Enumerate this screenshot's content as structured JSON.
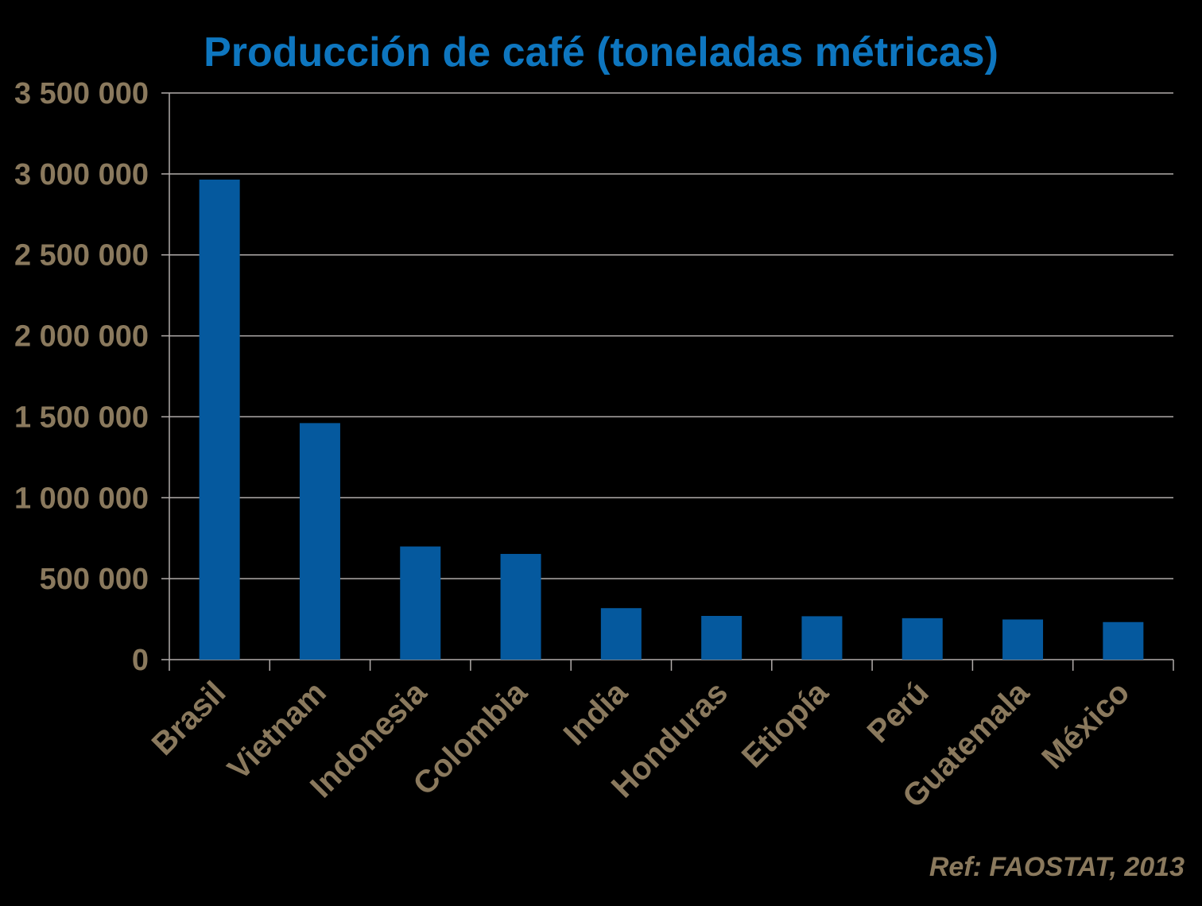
{
  "title": "Producción de café (toneladas métricas)",
  "source_reference": "Ref: FAOSTAT, 2013",
  "colors": {
    "background": "#000000",
    "title": "#0e76bf",
    "bar": "#05599e",
    "axis_text": "#8a795d",
    "gridline": "#b1acaa"
  },
  "chart_data": {
    "type": "bar",
    "title": "Producción de café (toneladas métricas)",
    "xlabel": "",
    "ylabel": "",
    "categories": [
      "Brasil",
      "Vietnam",
      "Indonesia",
      "Colombia",
      "India",
      "Honduras",
      "Etiopía",
      "Perú",
      "Guatemala",
      "México"
    ],
    "values": [
      2965000,
      1461000,
      699000,
      653000,
      318000,
      270000,
      268000,
      256000,
      248000,
      232000
    ],
    "ylim": [
      0,
      3500000
    ],
    "ytick_interval": 500000,
    "ytick_labels": [
      "0",
      "500 000",
      "1 000 000",
      "1 500 000",
      "2 000 000",
      "2 500 000",
      "3 000 000",
      "3 500 000"
    ],
    "grid": true,
    "legend": false,
    "annotation": "Ref: FAOSTAT, 2013"
  }
}
